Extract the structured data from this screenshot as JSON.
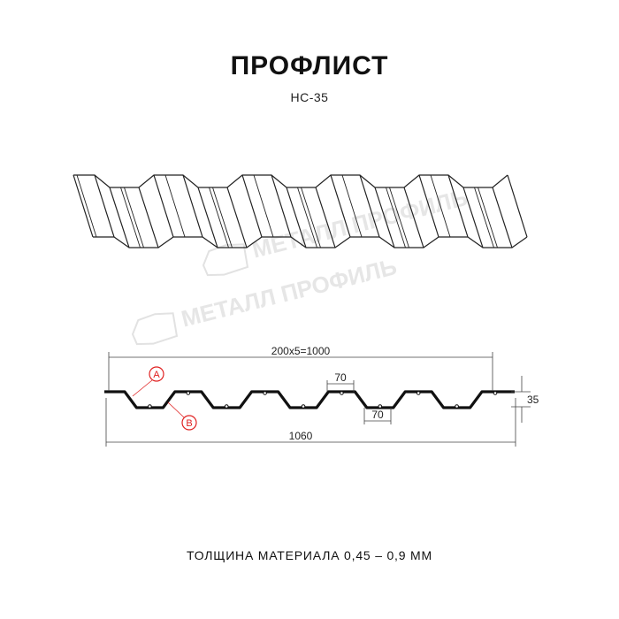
{
  "header": {
    "title": "ПРОФЛИСТ",
    "subtitle": "НС-35"
  },
  "watermark": {
    "text": "МЕТАЛЛ ПРОФИЛЬ"
  },
  "dimensions": {
    "pitch_total": "200x5=1000",
    "crest_width": "70",
    "trough_width": "70",
    "height": "35",
    "full_width": "1060"
  },
  "callouts": {
    "a": "A",
    "b": "B",
    "color": "#e02020"
  },
  "footer": {
    "thickness": "ТОЛЩИНА МАТЕРИАЛА 0,45 – 0,9 ММ"
  }
}
